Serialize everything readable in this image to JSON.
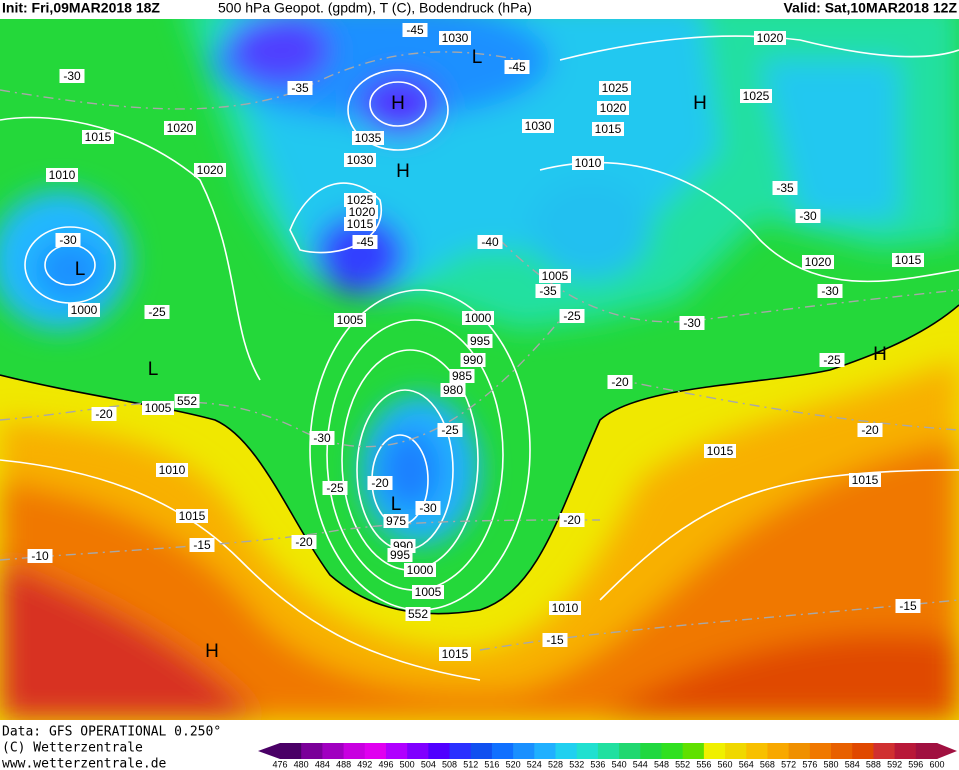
{
  "header": {
    "init": "Init: Fri,09MAR2018 18Z",
    "title": "500 hPa Geopot. (gpdm), T (C), Bodendruck (hPa)",
    "valid": "Valid: Sat,10MAR2018 12Z"
  },
  "map": {
    "labels": [
      "1030",
      "-45",
      "L",
      "-45",
      "1020",
      "-30",
      "-35",
      "H",
      "1025",
      "1020",
      "1025",
      "H",
      "1015",
      "1020",
      "1035",
      "1030",
      "1015",
      "1030",
      "H",
      "1010",
      "1010",
      "1020",
      "-35",
      "1025",
      "1020",
      "1015",
      "-30",
      "-30",
      "-45",
      "-40",
      "L",
      "1020",
      "1015",
      "1005",
      "-35",
      "-30",
      "1000",
      "-25",
      "1005",
      "1000",
      "-25",
      "-30",
      "995",
      "990",
      "-25",
      "H",
      "L",
      "985",
      "980",
      "-20",
      "1005",
      "552",
      "-20",
      "-25",
      "-30",
      "-20",
      "1015",
      "1010",
      "-20",
      "1015",
      "-25",
      "L",
      "-30",
      "1015",
      "975",
      "-20",
      "990",
      "-20",
      "-15",
      "-10",
      "995",
      "1000",
      "1005",
      "552",
      "1010",
      "-15",
      "-15",
      "1015",
      "H"
    ]
  },
  "footer": {
    "source": "Data: GFS OPERATIONAL 0.250°",
    "copyright": "(C) Wetterzentrale",
    "url": "www.wetterzentrale.de"
  },
  "colorbar": {
    "labels": [
      "476",
      "480",
      "484",
      "488",
      "492",
      "496",
      "500",
      "504",
      "508",
      "512",
      "516",
      "520",
      "524",
      "528",
      "532",
      "536",
      "540",
      "544",
      "548",
      "552",
      "556",
      "560",
      "564",
      "568",
      "572",
      "576",
      "580",
      "584",
      "588",
      "592",
      "596",
      "600"
    ],
    "colors": [
      "#4a0066",
      "#7a0099",
      "#a000c0",
      "#c800e0",
      "#e000f0",
      "#b000ff",
      "#8000ff",
      "#5000ff",
      "#2a30ff",
      "#1050f0",
      "#1070ff",
      "#1a90ff",
      "#20b0ff",
      "#20d0f0",
      "#20e0d0",
      "#20e0a0",
      "#20d870",
      "#20d840",
      "#30e020",
      "#60e000",
      "#f0f000",
      "#f0d800",
      "#f8c000",
      "#f8a800",
      "#f09000",
      "#f07800",
      "#e86000",
      "#e04800",
      "#d03030",
      "#b81838",
      "#a01040"
    ]
  }
}
